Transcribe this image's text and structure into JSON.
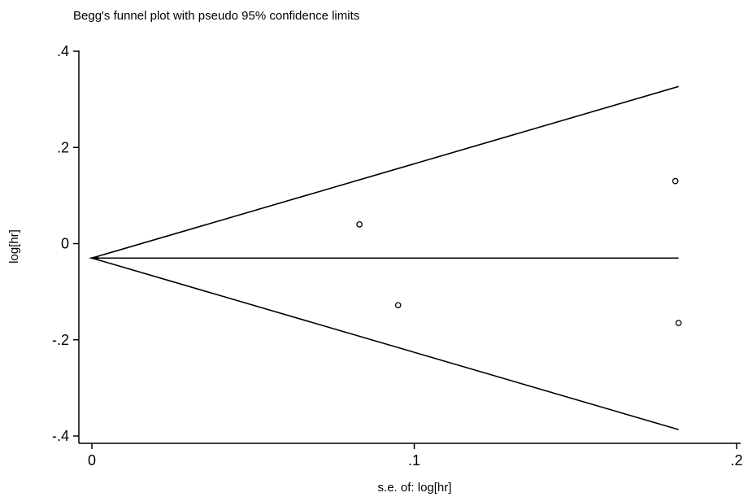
{
  "chart_data": {
    "type": "scatter",
    "title": "Begg's funnel plot with pseudo 95% confidence limits",
    "xlabel": "s.e. of: log[hr]",
    "ylabel": "log[hr]",
    "xlim": [
      0,
      0.2
    ],
    "ylim": [
      -0.4,
      0.4
    ],
    "x_ticks": [
      {
        "value": 0,
        "label": "0"
      },
      {
        "value": 0.1,
        "label": ".1"
      },
      {
        "value": 0.2,
        "label": ".2"
      }
    ],
    "y_ticks": [
      {
        "value": 0.4,
        "label": ".4"
      },
      {
        "value": 0.2,
        "label": ".2"
      },
      {
        "value": 0,
        "label": "0"
      },
      {
        "value": -0.2,
        "label": "-.2"
      },
      {
        "value": -0.4,
        "label": "-.4"
      }
    ],
    "pooled_estimate": -0.03,
    "se_max": 0.182,
    "points": [
      {
        "x": 0.083,
        "y": 0.04
      },
      {
        "x": 0.095,
        "y": -0.128
      },
      {
        "x": 0.181,
        "y": 0.13
      },
      {
        "x": 0.182,
        "y": -0.165
      }
    ],
    "grid": false,
    "legend": "none"
  }
}
